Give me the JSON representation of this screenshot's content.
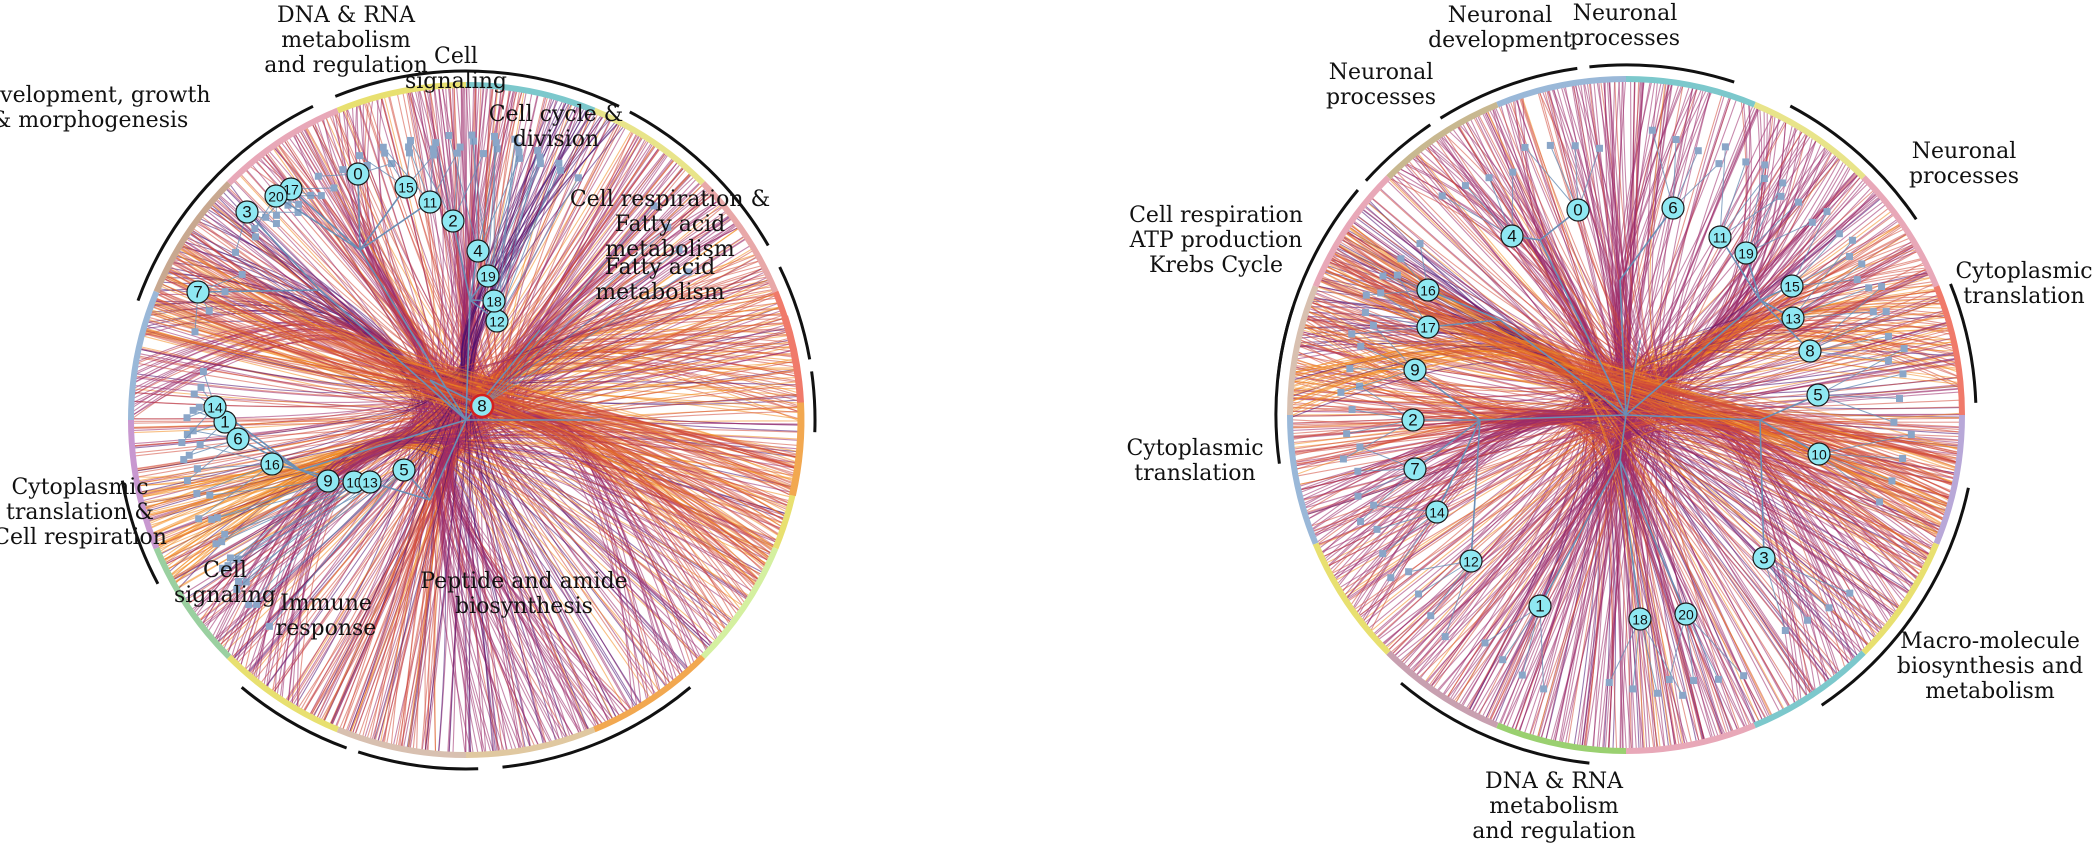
{
  "colors": {
    "bundle_dark": "#4a0f70",
    "bundle_mid": "#9a2a6a",
    "bundle_red": "#d24a3a",
    "bundle_orange": "#f28a1e",
    "tree": "#6a8fb5",
    "node_fill": "#8fe8f2",
    "node_stroke": "#1a1a1a",
    "node_highlight_stroke": "#d32020"
  },
  "left": {
    "arc_colors": [
      "#7cc8cc",
      "#e8e48a",
      "#e8a8a8",
      "#f07a6a",
      "#e8e070",
      "#d4f0a0",
      "#f2a850",
      "#e0c8a0",
      "#d8c0b0",
      "#e8e070",
      "#9ad0a0",
      "#c898d0",
      "#9ab8d8",
      "#c8a890",
      "#e8a8b8",
      "#e8e070"
    ],
    "nodes": [
      {
        "id": "0"
      },
      {
        "id": "1"
      },
      {
        "id": "2"
      },
      {
        "id": "3"
      },
      {
        "id": "4"
      },
      {
        "id": "5"
      },
      {
        "id": "6"
      },
      {
        "id": "7"
      },
      {
        "id": "8",
        "highlight": true
      },
      {
        "id": "9"
      },
      {
        "id": "10"
      },
      {
        "id": "11"
      },
      {
        "id": "12"
      },
      {
        "id": "13"
      },
      {
        "id": "14"
      },
      {
        "id": "15"
      },
      {
        "id": "16"
      },
      {
        "id": "17"
      },
      {
        "id": "18"
      },
      {
        "id": "19"
      },
      {
        "id": "20"
      }
    ],
    "labels": [
      {
        "lines": [
          "DNA & RNA",
          "metabolism",
          "and regulation"
        ]
      },
      {
        "lines": [
          "Cell",
          "signaling"
        ]
      },
      {
        "lines": [
          "Cell cycle &",
          "division"
        ]
      },
      {
        "lines": [
          "Cell respiration &",
          "Fatty acid",
          "metabolism"
        ]
      },
      {
        "lines": [
          "Fatty acid",
          "metabolism"
        ]
      },
      {
        "lines": [
          "Development, growth",
          "& morphogenesis"
        ]
      },
      {
        "lines": [
          "Cytoplasmic",
          "translation &",
          "Cell respiration"
        ]
      },
      {
        "lines": [
          "Cell",
          "signaling"
        ]
      },
      {
        "lines": [
          "Immune",
          "response"
        ]
      },
      {
        "lines": [
          "Peptide and amide",
          "biosynthesis"
        ]
      }
    ]
  },
  "right": {
    "arc_colors": [
      "#7cc8cc",
      "#e8e48a",
      "#e8a8b8",
      "#f07a6a",
      "#b8a8d8",
      "#e8e070",
      "#7cc8cc",
      "#e8a8b8",
      "#9ad070",
      "#c8a0b0",
      "#e8e070",
      "#9ab8d8",
      "#d8c0b0",
      "#e8a8b8",
      "#c8b890",
      "#9ab8d8"
    ],
    "nodes": [
      {
        "id": "0"
      },
      {
        "id": "1"
      },
      {
        "id": "2"
      },
      {
        "id": "3"
      },
      {
        "id": "4"
      },
      {
        "id": "5"
      },
      {
        "id": "6"
      },
      {
        "id": "7"
      },
      {
        "id": "8"
      },
      {
        "id": "9"
      },
      {
        "id": "10"
      },
      {
        "id": "11"
      },
      {
        "id": "12"
      },
      {
        "id": "13"
      },
      {
        "id": "14"
      },
      {
        "id": "15"
      },
      {
        "id": "16"
      },
      {
        "id": "17"
      },
      {
        "id": "18"
      },
      {
        "id": "19"
      },
      {
        "id": "20"
      }
    ],
    "labels": [
      {
        "lines": [
          "Neuronal",
          "development"
        ]
      },
      {
        "lines": [
          "Neuronal",
          "processes"
        ]
      },
      {
        "lines": [
          "Neuronal",
          "processes"
        ]
      },
      {
        "lines": [
          "Neuronal",
          "processes"
        ]
      },
      {
        "lines": [
          "Cell respiration",
          "ATP production",
          "Krebs Cycle"
        ]
      },
      {
        "lines": [
          "Cytoplasmic",
          "translation"
        ]
      },
      {
        "lines": [
          "Cytoplasmic",
          "translation"
        ]
      },
      {
        "lines": [
          "Macro-molecule",
          "biosynthesis and",
          "metabolism"
        ]
      },
      {
        "lines": [
          "DNA & RNA",
          "metabolism",
          "and regulation"
        ]
      }
    ]
  }
}
